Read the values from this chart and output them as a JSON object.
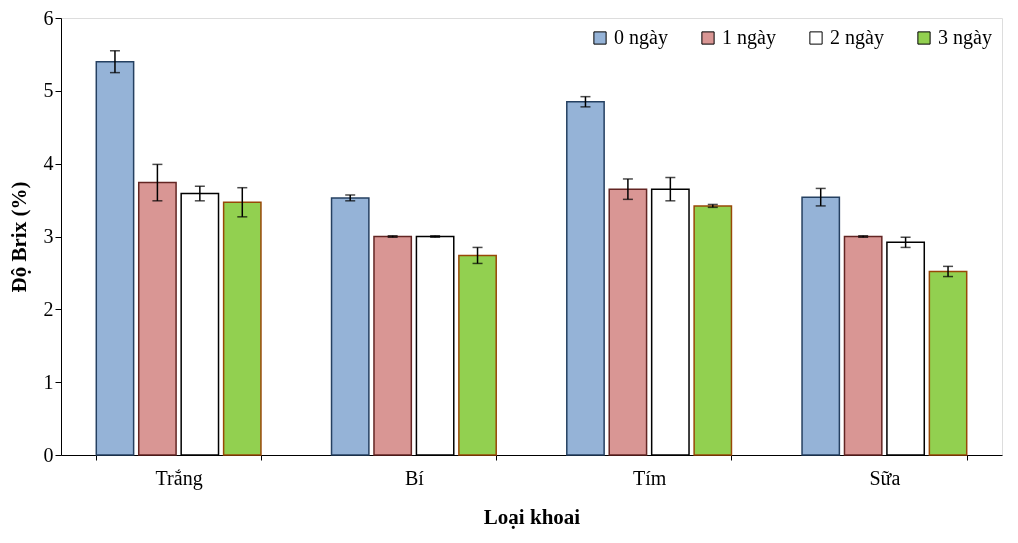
{
  "chart_data": {
    "type": "bar",
    "xlabel": "Loại khoai",
    "ylabel": "Độ Brix (%)",
    "categories": [
      "Trắng",
      "Bí",
      "Tím",
      "Sữa"
    ],
    "series": [
      {
        "name": "0 ngày",
        "color": "#95b3d7",
        "values": [
          5.4,
          3.53,
          4.85,
          3.54
        ],
        "errors": [
          0.15,
          0.04,
          0.07,
          0.12
        ]
      },
      {
        "name": "1 ngày",
        "color": "#d99694",
        "values": [
          3.74,
          3.0,
          3.65,
          3.0
        ],
        "errors": [
          0.25,
          0.01,
          0.14,
          0.01
        ]
      },
      {
        "name": "2 ngày",
        "color": "#ffffff",
        "values": [
          3.59,
          3.0,
          3.65,
          2.92
        ],
        "errors": [
          0.1,
          0.01,
          0.16,
          0.07
        ]
      },
      {
        "name": "3 ngày",
        "color": "#92d050",
        "values": [
          3.47,
          2.74,
          3.42,
          2.52
        ],
        "errors": [
          0.2,
          0.11,
          0.02,
          0.07
        ]
      }
    ],
    "ylim": [
      0,
      6
    ],
    "yticks": [
      0,
      1,
      2,
      3,
      4,
      5,
      6
    ],
    "grid": false,
    "legend": "top right"
  }
}
